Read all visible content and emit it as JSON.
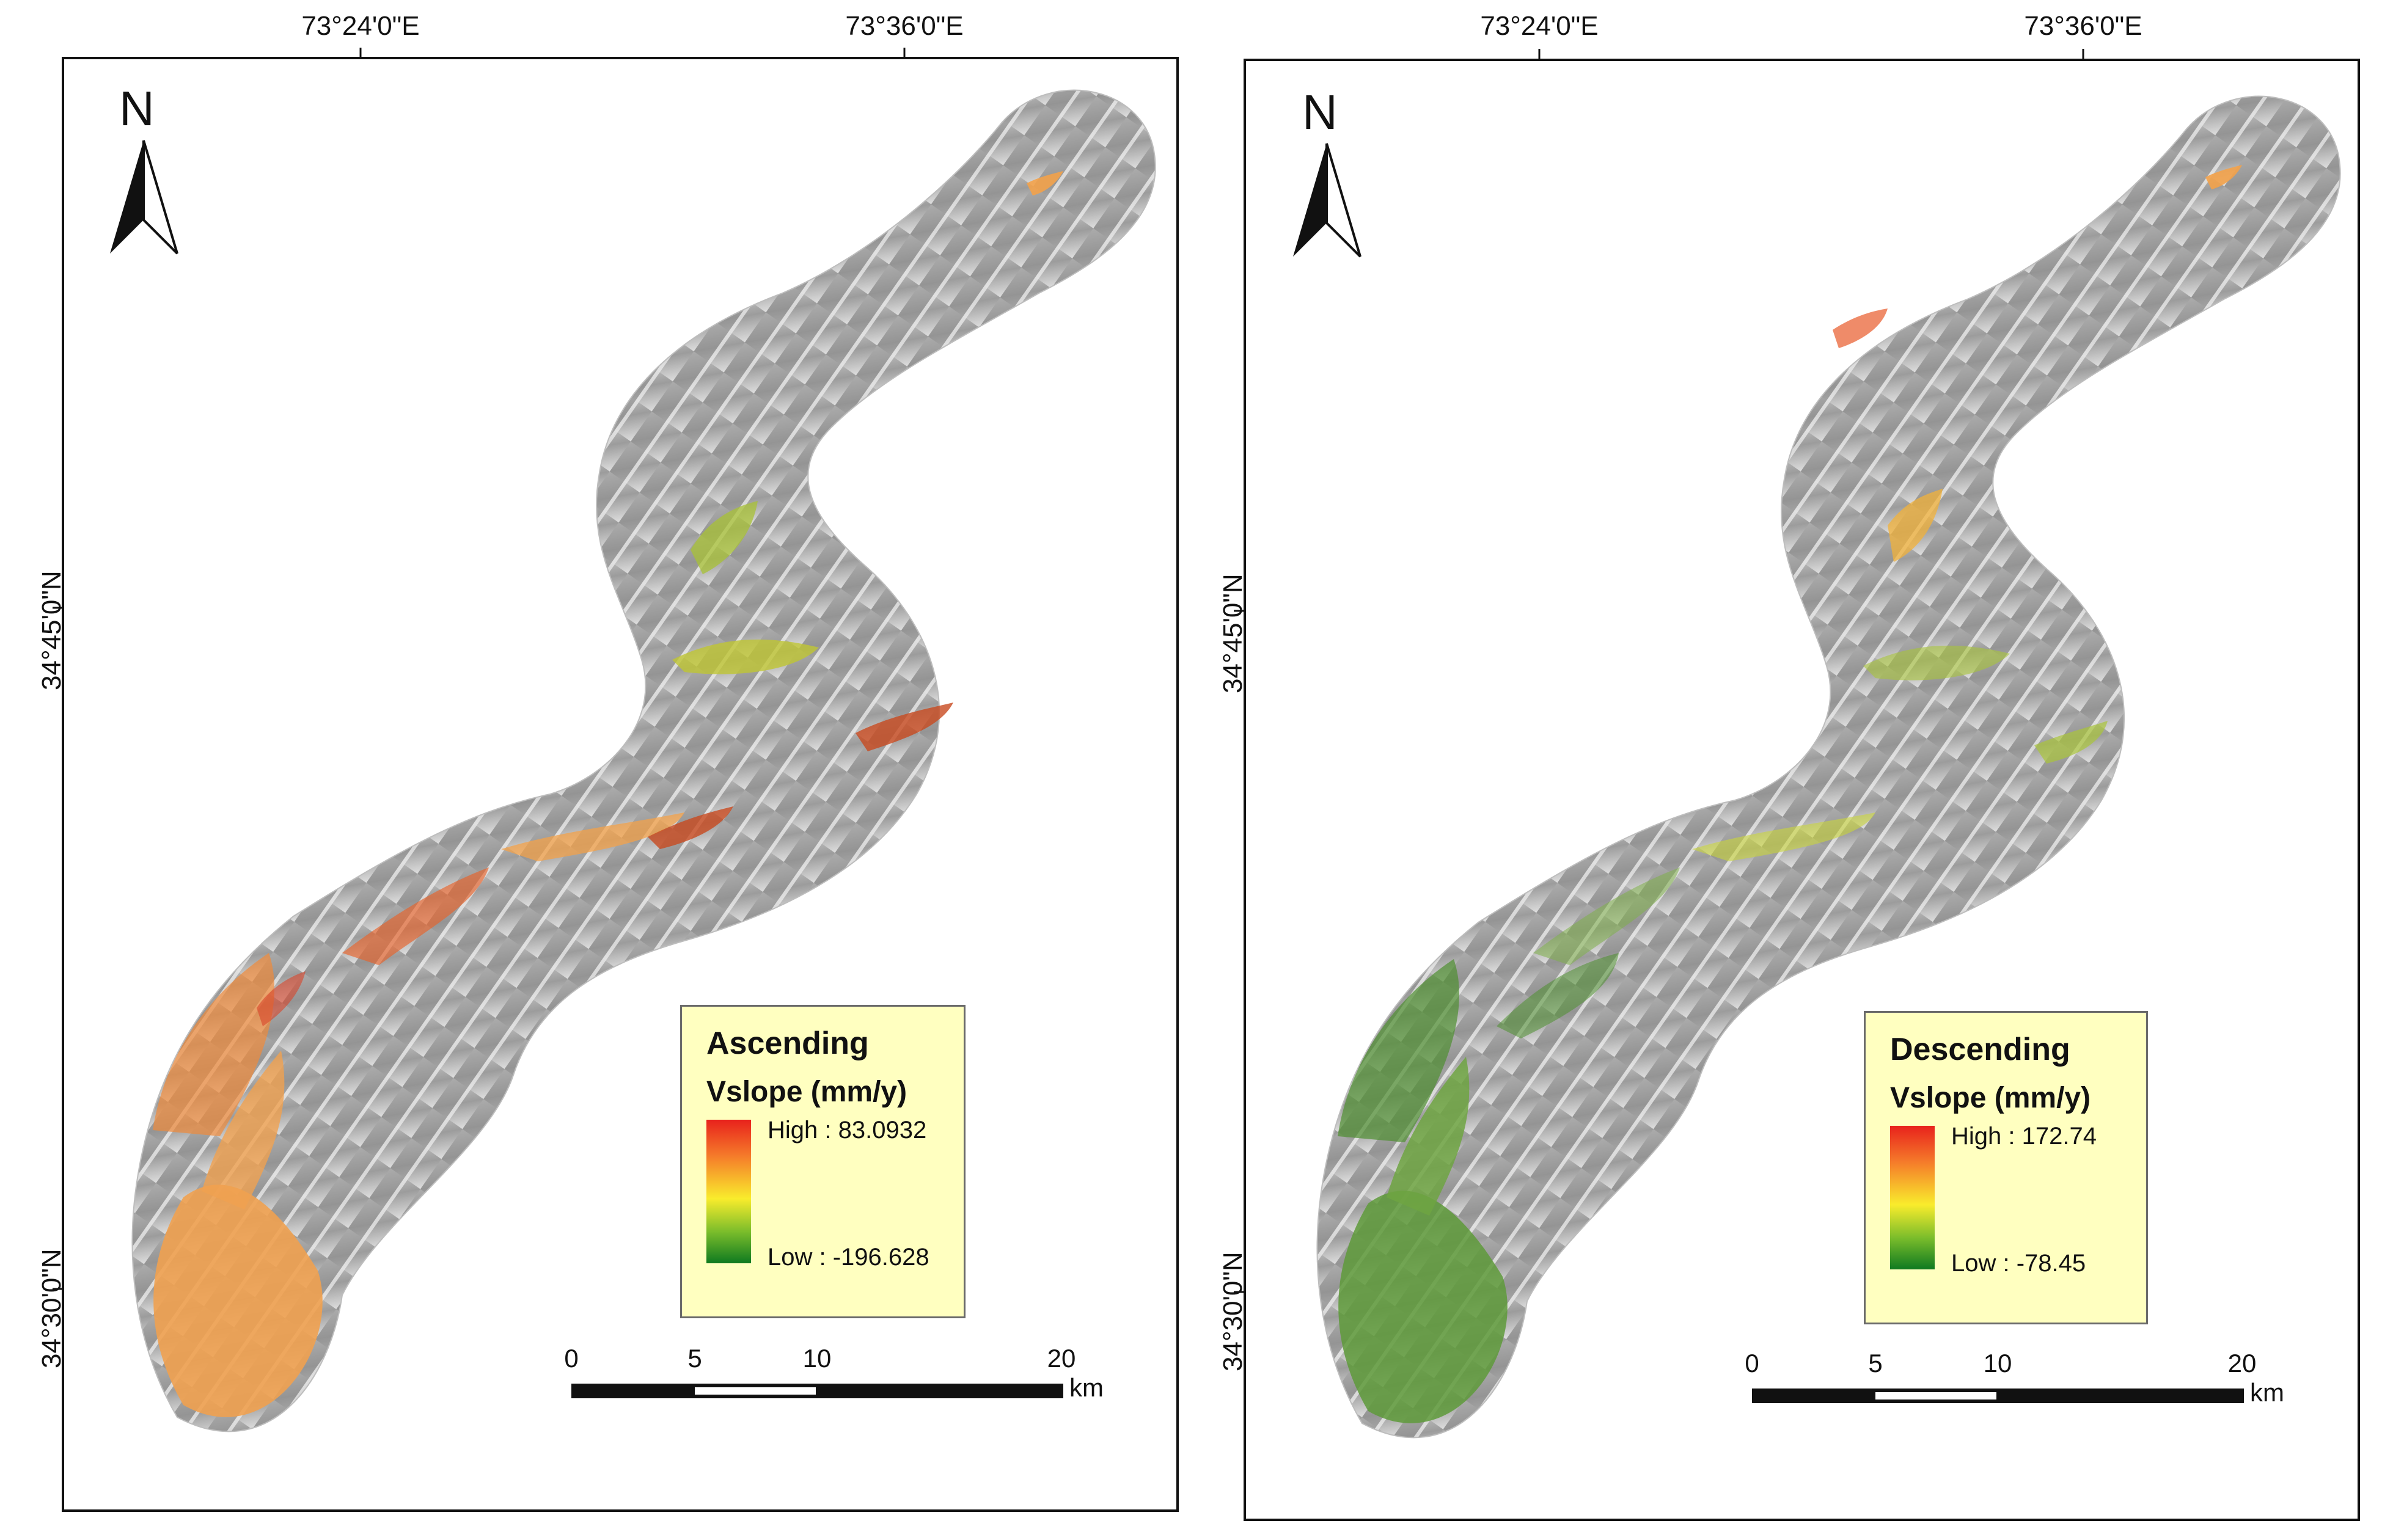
{
  "panels": [
    {
      "lon_labels": [
        "73°24'0\"E",
        "73°36'0\"E"
      ],
      "lat_labels": [
        "34°45'0\"N",
        "34°30'0\"N"
      ],
      "north_label": "N",
      "legend": {
        "title": "Ascending",
        "subtitle": "Vslope (mm/y)",
        "high": "High : 83.0932",
        "low": "Low : -196.628"
      },
      "scalebar": {
        "ticks": [
          "0",
          "5",
          "10",
          "20"
        ],
        "unit": "km"
      },
      "dominant_color": "#f0a150"
    },
    {
      "lon_labels": [
        "73°24'0\"E",
        "73°36'0\"E"
      ],
      "lat_labels": [
        "34°45'0\"N",
        "34°30'0\"N"
      ],
      "north_label": "N",
      "legend": {
        "title": "Descending",
        "subtitle": "Vslope (mm/y)",
        "high": "High : 172.74",
        "low": "Low : -78.45"
      },
      "scalebar": {
        "ticks": [
          "0",
          "5",
          "10",
          "20"
        ],
        "unit": "km"
      },
      "dominant_color": "#5e9a3a"
    }
  ],
  "colors": {
    "ramp_high": "#e8221c",
    "ramp_mid": "#f9ec2c",
    "ramp_low": "#0f7a20",
    "legend_bg": "#ffffc0",
    "hillshade": "#a8a8a8"
  }
}
